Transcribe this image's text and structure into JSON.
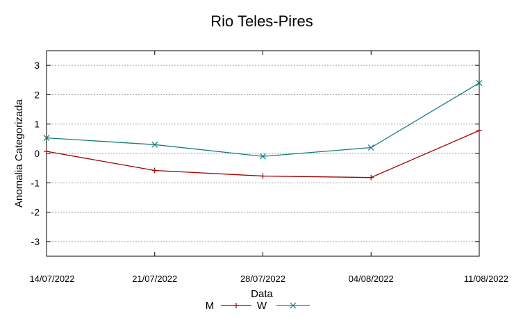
{
  "chart_data": {
    "type": "line",
    "title": "Rio Teles-Pires",
    "xlabel": "Data",
    "ylabel": "Anomalia Categorizada",
    "categories": [
      "14/07/2022",
      "21/07/2022",
      "28/07/2022",
      "04/08/2022",
      "11/08/2022"
    ],
    "ylim": [
      -3.5,
      3.5
    ],
    "yticks": [
      3,
      2,
      1,
      0,
      -1,
      -2,
      -3
    ],
    "ytick_labels": [
      "3",
      "2",
      "1",
      "0",
      "-1",
      "-2",
      "-3"
    ],
    "grid": true,
    "legend_position": "bottom-center",
    "series": [
      {
        "name": "M",
        "marker": "plus",
        "color": "#a00000",
        "values": [
          0.07,
          -0.58,
          -0.77,
          -0.82,
          0.78
        ]
      },
      {
        "name": "W",
        "marker": "x",
        "color": "#1a7a80",
        "values": [
          0.53,
          0.3,
          -0.1,
          0.2,
          2.4
        ]
      }
    ]
  }
}
